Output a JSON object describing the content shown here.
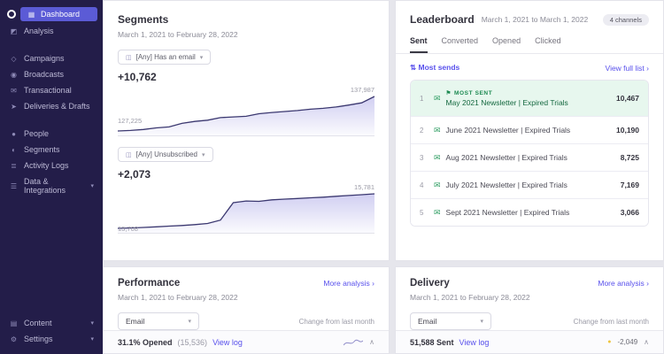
{
  "colors": {
    "accent": "#5850ec",
    "sidebar_bg": "#231d49",
    "active_item": "#5b5bd6",
    "highlight_green_bg": "#e7f7ee",
    "highlight_green_text": "#14683f",
    "warning_dot": "#eec53f",
    "chart_line": "#3b3870"
  },
  "icons": {
    "dashboard": "▦",
    "analysis": "◩",
    "campaigns": "◇",
    "broadcasts": "◉",
    "transactional": "✉",
    "deliveries": "➤",
    "people": "●",
    "segments": "◐",
    "activity": "≣",
    "data": "☰",
    "content": "▤",
    "settings": "⚙",
    "chevron_down": "▾",
    "chevron_right": "›",
    "caret_up": "∧",
    "sort": "⇅",
    "trophy": "⚑",
    "mail": "✉",
    "filter": "◫"
  },
  "sidebar": {
    "top": [
      {
        "label": "Dashboard"
      },
      {
        "label": "Analysis"
      }
    ],
    "mid": [
      {
        "label": "Campaigns"
      },
      {
        "label": "Broadcasts"
      },
      {
        "label": "Transactional"
      },
      {
        "label": "Deliveries & Drafts"
      }
    ],
    "lower": [
      {
        "label": "People"
      },
      {
        "label": "Segments"
      },
      {
        "label": "Activity Logs"
      },
      {
        "label": "Data & Integrations"
      }
    ],
    "bottom": [
      {
        "label": "Content"
      },
      {
        "label": "Settings"
      }
    ]
  },
  "segments": {
    "title": "Segments",
    "date_range": "March 1, 2021 to February 28, 2022",
    "charts": [
      {
        "filter": "[Any] Has an email",
        "delta": "+10,762",
        "start_label": "127,225",
        "end_label": "137,987",
        "points": [
          127225,
          127400,
          127700,
          128200,
          128500,
          129600,
          130200,
          130600,
          131400,
          131600,
          131800,
          132600,
          133000,
          133300,
          133600,
          134000,
          134300,
          134700,
          135300,
          136000,
          137987
        ]
      },
      {
        "filter": "[Any] Unsubscribed",
        "delta": "+2,073",
        "start_label": "13,708",
        "end_label": "15,781",
        "points": [
          13708,
          13730,
          13760,
          13800,
          13840,
          13880,
          13930,
          14000,
          14200,
          15250,
          15350,
          15330,
          15420,
          15460,
          15500,
          15540,
          15580,
          15630,
          15680,
          15730,
          15781
        ]
      }
    ]
  },
  "leaderboard": {
    "title": "Leaderboard",
    "date_range": "March 1, 2021 to March 1, 2022",
    "channels_badge": "4 channels",
    "tabs": [
      {
        "label": "Sent"
      },
      {
        "label": "Converted"
      },
      {
        "label": "Opened"
      },
      {
        "label": "Clicked"
      }
    ],
    "active_tab": "Sent",
    "filter_label": "Most sends",
    "view_full": "View full list ›",
    "rows": [
      {
        "rank": "1",
        "badge": "MOST SENT",
        "title": "May 2021 Newsletter | Expired Trials",
        "value": "10,467"
      },
      {
        "rank": "2",
        "title": "June 2021 Newsletter | Expired Trials",
        "value": "10,190"
      },
      {
        "rank": "3",
        "title": "Aug 2021 Newsletter | Expired Trials",
        "value": "8,725"
      },
      {
        "rank": "4",
        "title": "July 2021 Newsletter | Expired Trials",
        "value": "7,169"
      },
      {
        "rank": "5",
        "title": "Sept 2021 Newsletter | Expired Trials",
        "value": "3,066"
      }
    ]
  },
  "performance": {
    "title": "Performance",
    "more": "More analysis ›",
    "date_range": "March 1, 2021 to February 28, 2022",
    "channel": "Email",
    "change_label": "Change from last month",
    "metric": "31.1% Opened",
    "metric_sub": "(15,536)",
    "view_log": "View log"
  },
  "delivery": {
    "title": "Delivery",
    "more": "More analysis ›",
    "date_range": "March 1, 2021 to February 28, 2022",
    "channel": "Email",
    "change_label": "Change from last month",
    "metric": "51,588 Sent",
    "view_log": "View log",
    "delta": "-2,049"
  }
}
